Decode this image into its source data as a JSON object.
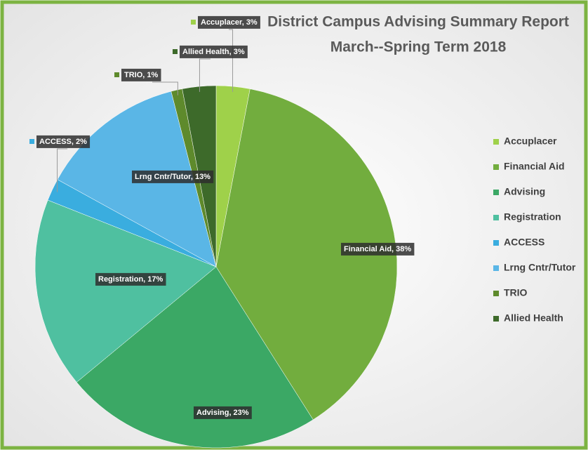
{
  "chart_data": {
    "type": "pie",
    "title": "District Campus Advising Summary Report",
    "subtitle": "March--Spring Term 2018",
    "categories": [
      "Accuplacer",
      "Financial Aid",
      "Advising",
      "Registration",
      "ACCESS",
      "Lrng Cntr/Tutor",
      "TRIO",
      "Allied Health"
    ],
    "values": [
      3,
      38,
      23,
      17,
      2,
      13,
      1,
      3
    ],
    "value_labels": [
      "Accuplacer, 3%",
      "Financial Aid, 38%",
      "Advising, 23%",
      "Registration, 17%",
      "ACCESS, 2%",
      "Lrng Cntr/Tutor, 13%",
      "TRIO, 1%",
      "Allied Health, 3%"
    ],
    "colors": [
      "#9fd14a",
      "#72ad3e",
      "#3ba865",
      "#4fc0a0",
      "#3aaddf",
      "#5ab6e6",
      "#5e8a2c",
      "#3d6a2a"
    ],
    "legend": "right"
  }
}
